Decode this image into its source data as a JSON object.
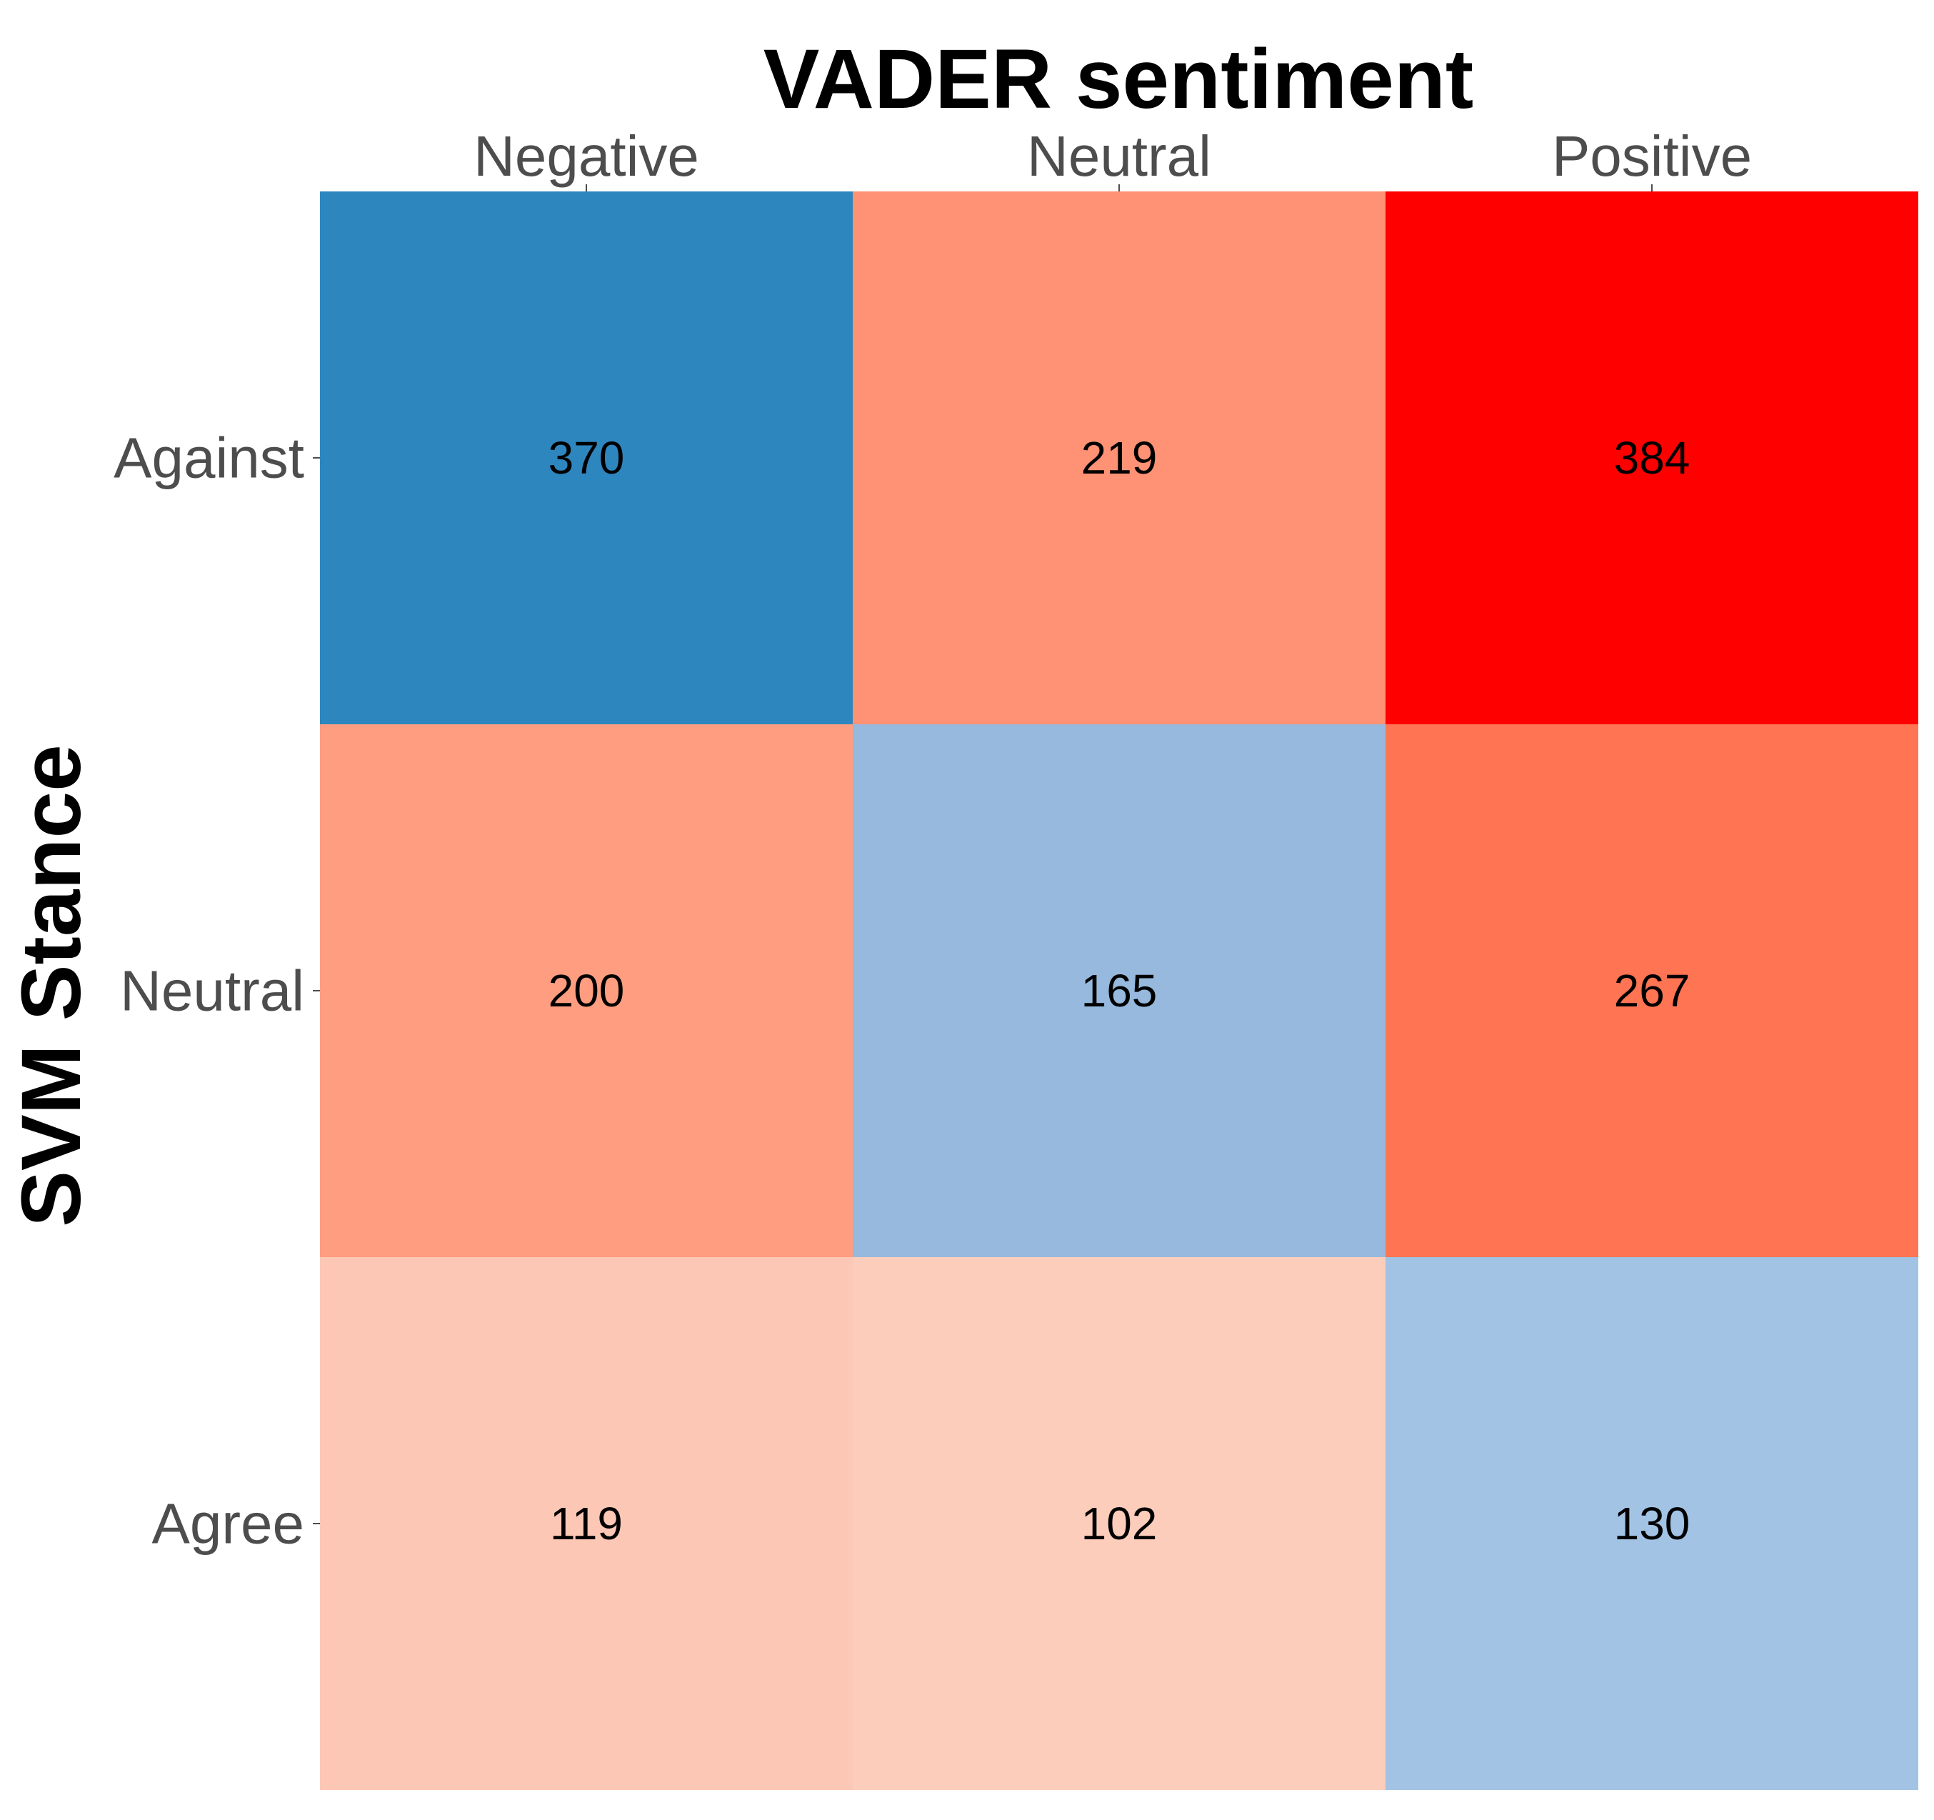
{
  "chart_data": {
    "type": "heatmap",
    "title": "VADER sentiment",
    "xlabel": "VADER sentiment",
    "ylabel": "SVM Stance",
    "x_categories": [
      "Negative",
      "Neutral",
      "Positive"
    ],
    "y_categories": [
      "Against",
      "Neutral",
      "Agree"
    ],
    "x_axis_position": "top",
    "grid": false,
    "legend": "none",
    "values": [
      [
        370,
        219,
        384
      ],
      [
        200,
        165,
        267
      ],
      [
        119,
        102,
        130
      ]
    ],
    "colors": [
      [
        "#2e86bf",
        "#ff9174",
        "#ff0000"
      ],
      [
        "#ff9d80",
        "#96b9dd",
        "#ff7452"
      ],
      [
        "#fdc7b6",
        "#fdcdbc",
        "#a2c3e4"
      ]
    ]
  }
}
